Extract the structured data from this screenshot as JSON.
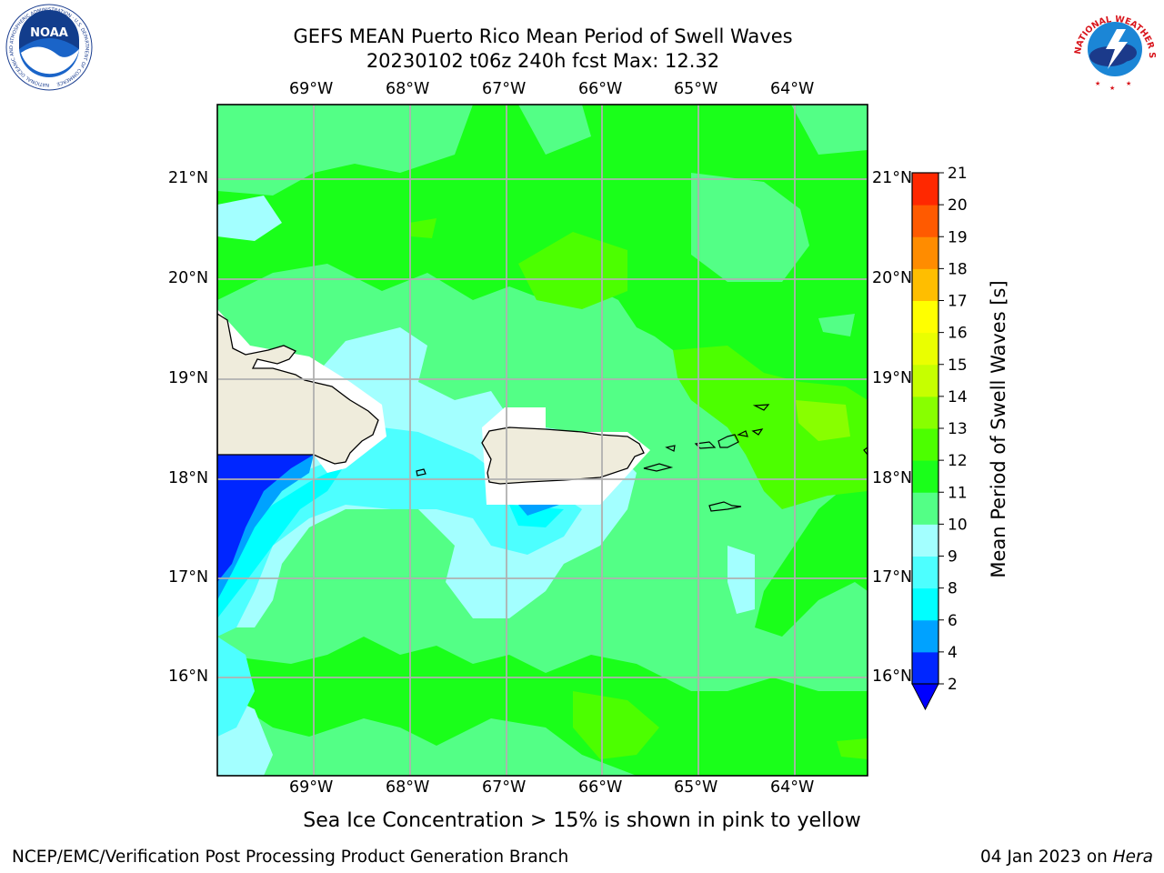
{
  "title_line1": "GEFS MEAN Puerto Rico Mean Period of Swell Waves",
  "title_line2": "20230102 t06z 240h fcst   Max: 12.32",
  "lon_labels": [
    "69°W",
    "68°W",
    "67°W",
    "66°W",
    "65°W",
    "64°W"
  ],
  "lat_labels": [
    "21°N",
    "20°N",
    "19°N",
    "18°N",
    "17°N",
    "16°N"
  ],
  "colorbar": {
    "label": "Mean Period of Swell Waves [s]",
    "ticks": [
      "2",
      "4",
      "6",
      "8",
      "9",
      "10",
      "11",
      "12",
      "13",
      "14",
      "15",
      "16",
      "17",
      "18",
      "19",
      "20",
      "21"
    ],
    "colors": [
      "#0026ff",
      "#00a2ff",
      "#00ffff",
      "#4dffff",
      "#a3ffff",
      "#53ff86",
      "#1aff1a",
      "#4cff00",
      "#88ff00",
      "#c6ff00",
      "#eaff00",
      "#ffff00",
      "#ffbe00",
      "#ff8c00",
      "#ff5a00",
      "#ff2800",
      "#ff0000"
    ],
    "under_color": "#0000ff"
  },
  "note": "Sea Ice Concentration > 15% is shown in pink to yellow",
  "footer_left": "NCEP/EMC/Verification Post Processing Product Generation Branch",
  "footer_right_prefix": "04 Jan 2023 on ",
  "footer_right_host": "Hera",
  "logos": {
    "left": {
      "text": "NOAA",
      "ring_text": "NATIONAL OCEANIC AND ATMOSPHERIC ADMINISTRATION · U.S. DEPARTMENT OF COMMERCE"
    },
    "right": {
      "ring_text": "NATIONAL WEATHER SERVICE"
    }
  }
}
